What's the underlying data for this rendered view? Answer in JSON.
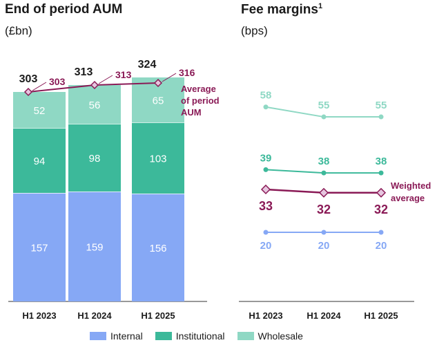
{
  "left": {
    "title": "End of period AUM",
    "subtitle": "(£bn)"
  },
  "right": {
    "title": "Fee margins",
    "title_sup": "1",
    "subtitle": "(bps)"
  },
  "chart_data": [
    {
      "type": "bar",
      "stacked": true,
      "title": "End of period AUM",
      "ylabel": "£bn",
      "categories": [
        "H1 2023",
        "H1 2024",
        "H1 2025"
      ],
      "series": [
        {
          "name": "Internal",
          "values": [
            157,
            159,
            156
          ],
          "color": "#86a8f5"
        },
        {
          "name": "Institutional",
          "values": [
            94,
            98,
            103
          ],
          "color": "#3cb99a"
        },
        {
          "name": "Wholesale",
          "values": [
            52,
            56,
            65
          ],
          "color": "#8fd8c4"
        }
      ],
      "totals": [
        303,
        313,
        324
      ],
      "line": {
        "name": "Average of period AUM",
        "values": [
          303,
          313,
          316
        ],
        "color": "#8a1a56"
      },
      "line_label": "Average of period AUM"
    },
    {
      "type": "line",
      "title": "Fee margins",
      "ylabel": "bps",
      "categories": [
        "H1 2023",
        "H1 2024",
        "H1 2025"
      ],
      "series": [
        {
          "name": "Wholesale",
          "values": [
            58,
            55,
            55
          ],
          "color": "#8fd8c4"
        },
        {
          "name": "Institutional",
          "values": [
            39,
            38,
            38
          ],
          "color": "#3cb99a"
        },
        {
          "name": "Weighted average",
          "values": [
            33,
            32,
            32
          ],
          "color": "#8a1a56"
        },
        {
          "name": "Internal",
          "values": [
            20,
            20,
            20
          ],
          "color": "#86a8f5"
        }
      ],
      "weighted_label": "Weighted average"
    }
  ],
  "legend": [
    {
      "label": "Internal",
      "color": "#86a8f5"
    },
    {
      "label": "Institutional",
      "color": "#3cb99a"
    },
    {
      "label": "Wholesale",
      "color": "#8fd8c4"
    }
  ]
}
